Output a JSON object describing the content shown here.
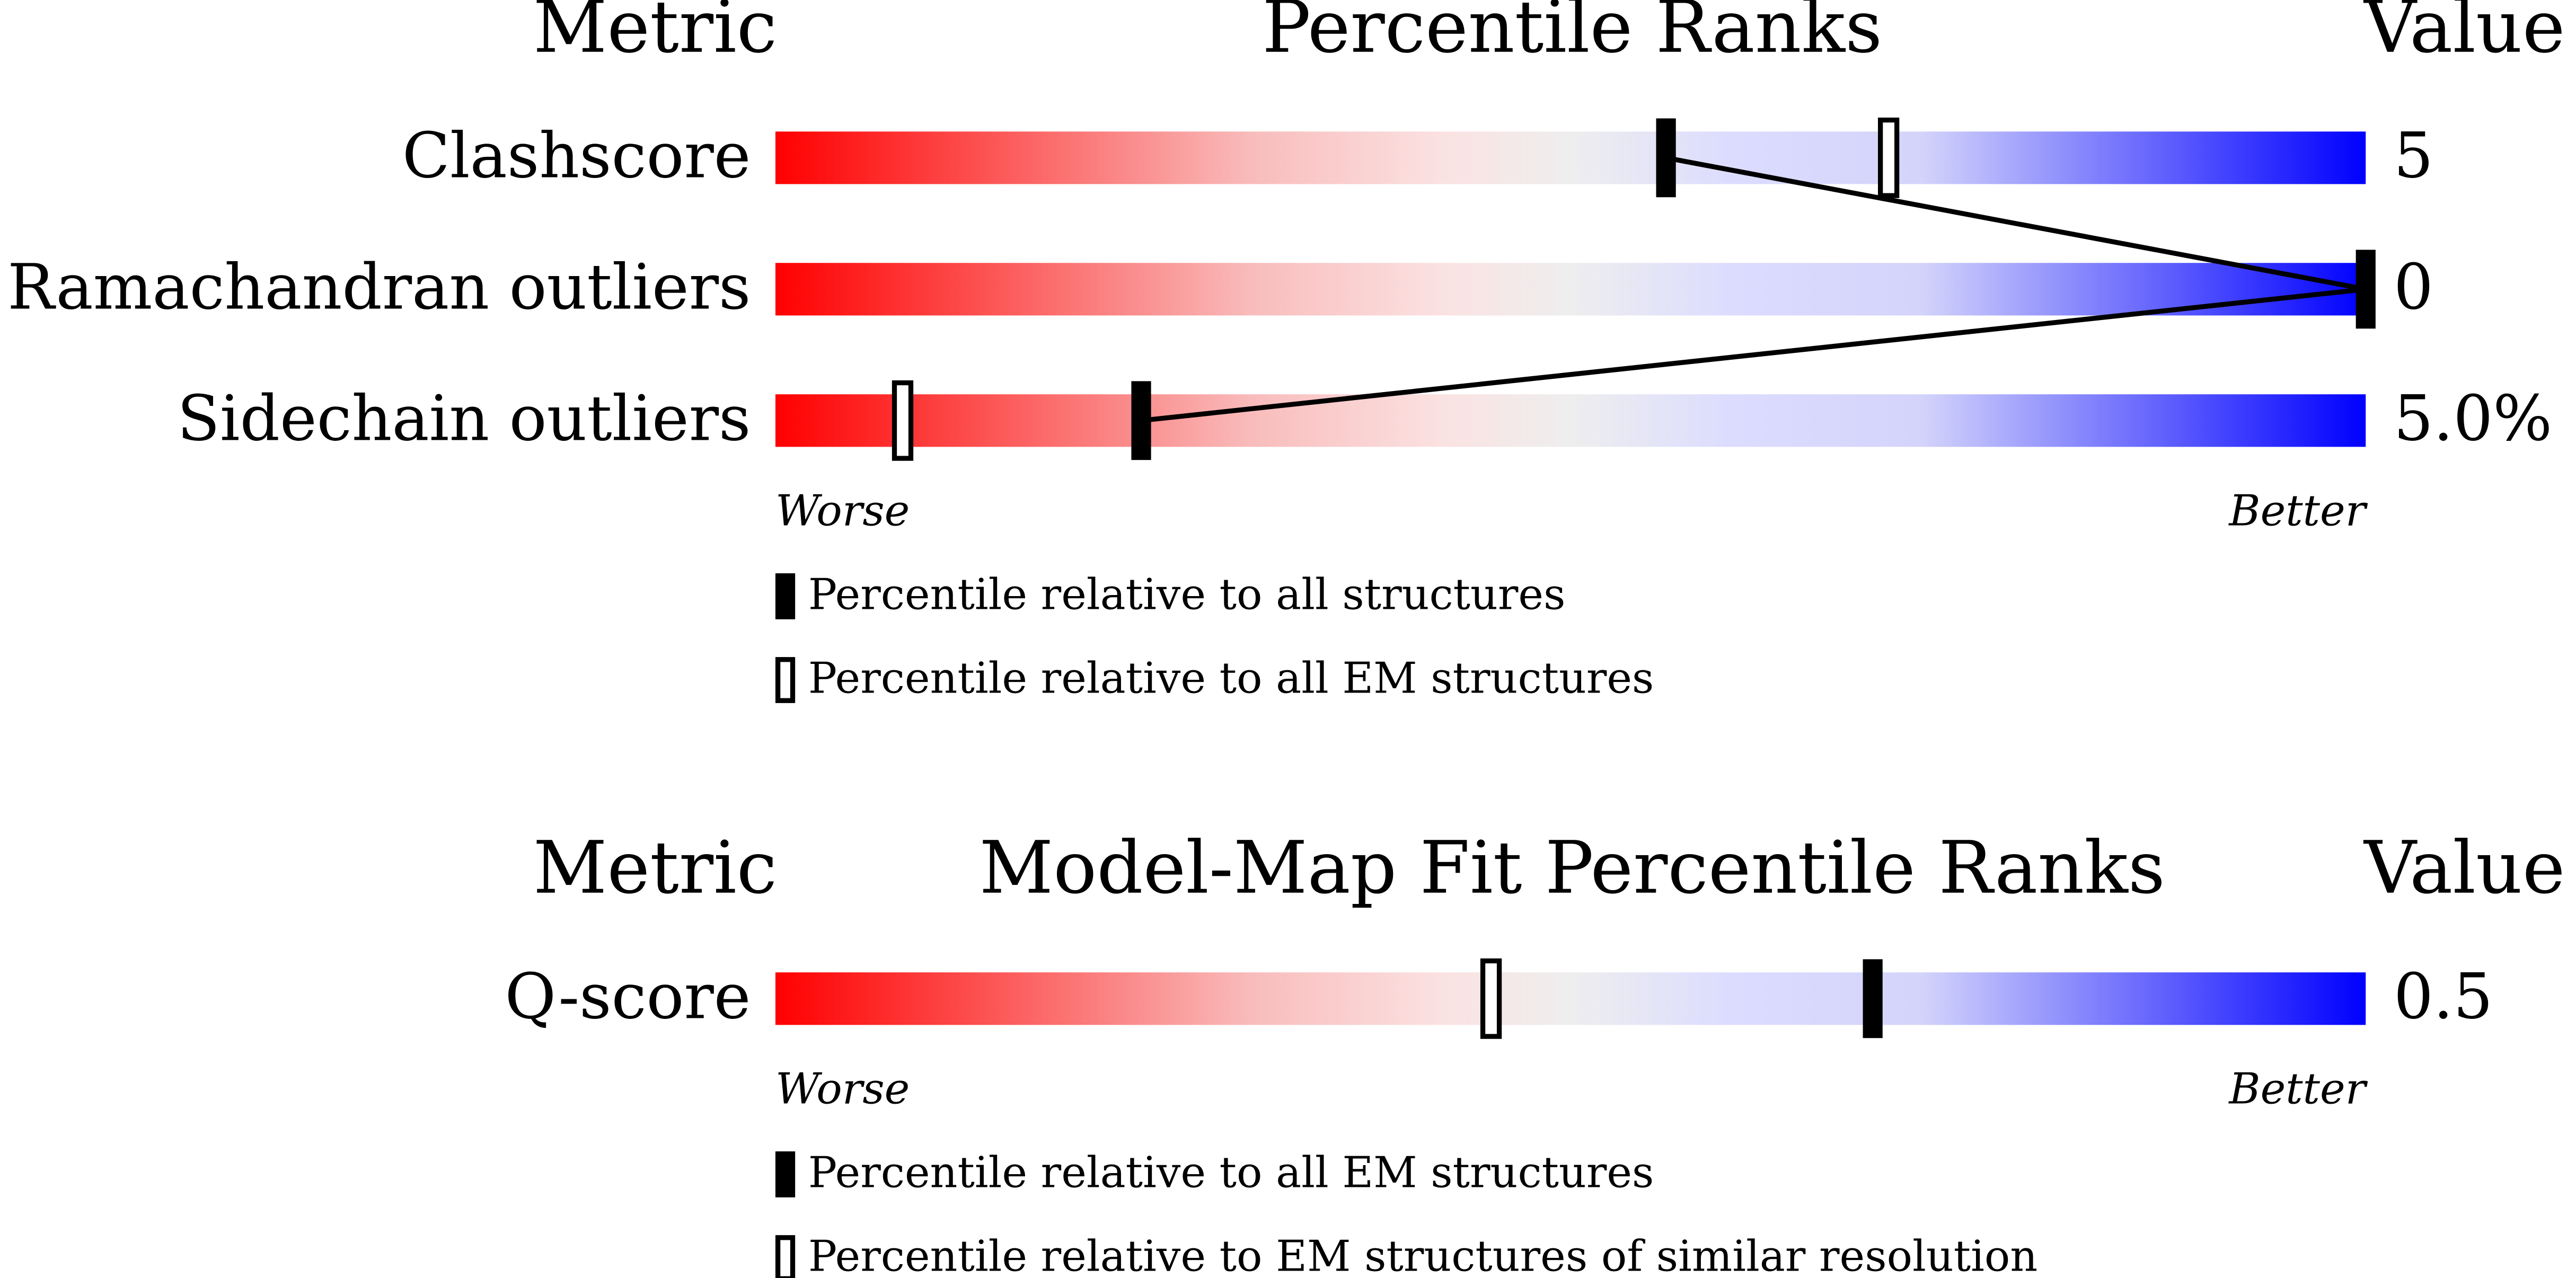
{
  "chart_data": [
    {
      "type": "percentile",
      "metric_header": "Metric",
      "title": "Percentile Ranks",
      "value_header": "Value",
      "categories": [
        "Clashscore",
        "Ramachandran outliers",
        "Sidechain outliers"
      ],
      "metric_values": [
        "5",
        "0",
        "5.0%"
      ],
      "series": [
        {
          "name": "Percentile relative to all structures",
          "color": "#000000",
          "style": "filled",
          "values": [
            56,
            100,
            23
          ]
        },
        {
          "name": "Percentile relative to all EM structures",
          "color": "#000000",
          "style": "open",
          "values": [
            70,
            null,
            8
          ]
        }
      ],
      "worse": "Worse",
      "better": "Better",
      "xlim": [
        0,
        100
      ]
    },
    {
      "type": "percentile",
      "metric_header": "Metric",
      "title": "Model-Map Fit Percentile Ranks",
      "value_header": "Value",
      "categories": [
        "Q-score"
      ],
      "metric_values": [
        "0.5"
      ],
      "series": [
        {
          "name": "Percentile relative to all EM structures",
          "color": "#000000",
          "style": "filled",
          "values": [
            69
          ]
        },
        {
          "name": "Percentile relative to EM structures of similar resolution",
          "color": "#000000",
          "style": "open",
          "values": [
            45
          ]
        }
      ],
      "worse": "Worse",
      "better": "Better",
      "xlim": [
        0,
        100
      ]
    }
  ]
}
